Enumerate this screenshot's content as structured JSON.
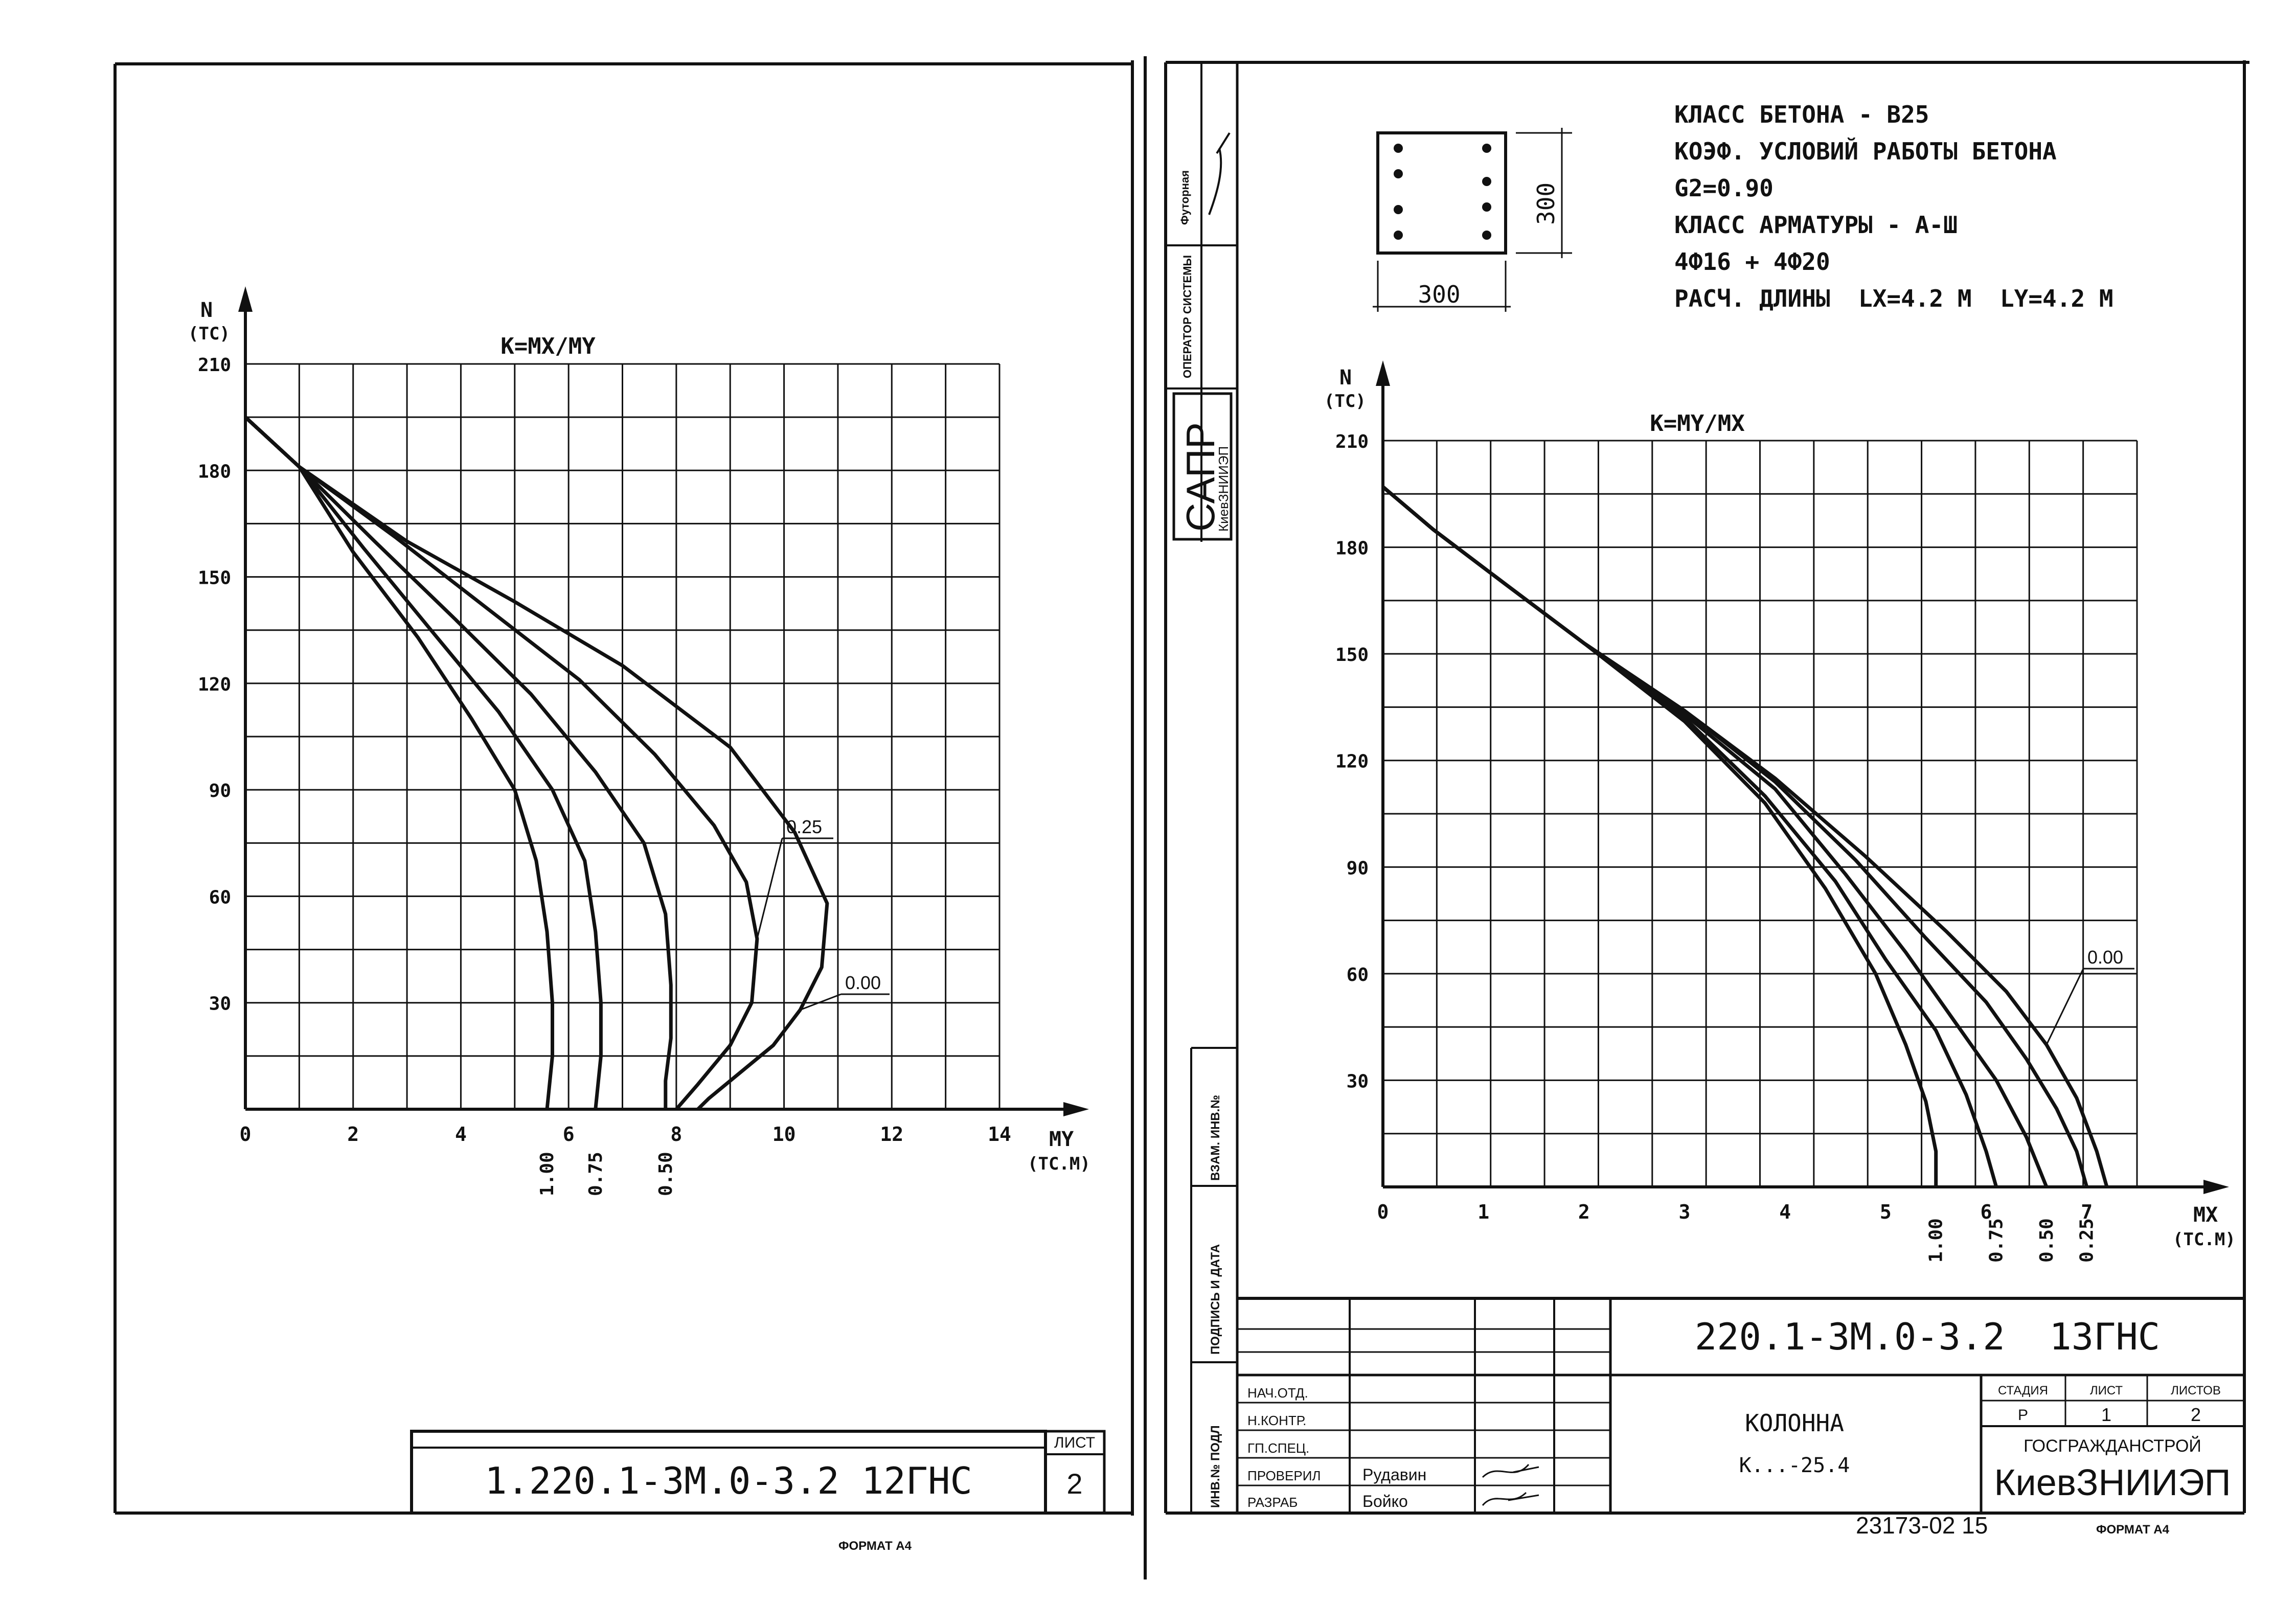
{
  "left_sheet": {
    "doc_code": "1.220.1-3M.0-3.2 12ГНС",
    "sheet_label": "ЛИСТ",
    "sheet_no": "2",
    "format_label": "ФОРМАТ А4"
  },
  "right_sheet": {
    "spec_lines": [
      "КЛАСС БЕТОНА - В25",
      "КОЭФ. УСЛОВИЙ РАБОТЫ БЕТОНА",
      "G2=0.90",
      "КЛАСС АРМАТУРЫ - А-Ш",
      "4Ф16 + 4Ф20",
      "РАСЧ. ДЛИНЫ  LX=4.2 M  LY=4.2 M"
    ],
    "section": {
      "width_label": "300",
      "height_label": "300"
    },
    "side_stamp": {
      "author_label": "Футорная",
      "operator_label": "ОПЕРАТОР СИСТЕМЫ",
      "sapr": "САПР",
      "sapr_org": "КиевЗНИИЭП",
      "col_inv_zam": "ВЗАМ. ИНВ.№",
      "col_sign_date": "ПОДПИСЬ И ДАТА",
      "col_inv_podl": "ИНВ.№ ПОДЛ"
    },
    "title_block": {
      "doc_code": "220.1-3M.0-3.2  13ГНС",
      "roles": [
        "НАЧ.ОТД.",
        "Н.КОНТР.",
        "ГП.СПЕЦ.",
        "ПРОВЕРИЛ",
        "РАЗРАБ"
      ],
      "names": [
        "",
        "",
        "",
        "Рудавин",
        "Бойко"
      ],
      "item_title": "КОЛОННА",
      "item_code": "К...-25.4",
      "stage_label": "СТАДИЯ",
      "sheet_label": "ЛИСТ",
      "sheets_label": "ЛИСТОВ",
      "stage": "Р",
      "sheet": "1",
      "sheets": "2",
      "org_line1": "ГОСГРАЖДАНСТРОЙ",
      "org_line2": "КиевЗНИИЭП"
    },
    "bottom_number": "23173-02 15",
    "format_label": "ФОРМАТ А4"
  },
  "chart_data": [
    {
      "type": "line",
      "title": "K=MX/MY",
      "ylabel": "N",
      "ylabel_unit": "(TC)",
      "xlabel": "MY",
      "xlabel_unit": "(TC.M)",
      "xlim": [
        0,
        14
      ],
      "ylim": [
        0,
        210
      ],
      "xticks": [
        0,
        2,
        4,
        6,
        8,
        10,
        12,
        14
      ],
      "yticks": [
        30,
        60,
        90,
        120,
        150,
        180,
        210
      ],
      "grid": true,
      "series": [
        {
          "name": "0.00",
          "x": [
            0,
            1,
            3,
            5,
            7,
            9,
            10.2,
            10.8,
            10.7,
            10.3,
            9.8,
            9.0,
            8.6,
            8.4
          ],
          "y": [
            195,
            181,
            160,
            143,
            125,
            102,
            78,
            58,
            40,
            28,
            18,
            8,
            3,
            0
          ]
        },
        {
          "name": "0.25",
          "x": [
            0,
            1,
            2.8,
            4.5,
            6.2,
            7.6,
            8.7,
            9.3,
            9.5,
            9.4,
            9.0,
            8.4,
            8.0
          ],
          "y": [
            195,
            181,
            161,
            141,
            121,
            100,
            80,
            64,
            48,
            30,
            18,
            7,
            0
          ]
        },
        {
          "name": "0.50",
          "x": [
            0,
            1,
            2.4,
            3.9,
            5.3,
            6.5,
            7.4,
            7.8,
            7.9,
            7.9,
            7.8,
            7.8
          ],
          "y": [
            195,
            181,
            160,
            138,
            117,
            95,
            75,
            55,
            35,
            20,
            8,
            0
          ]
        },
        {
          "name": "0.75",
          "x": [
            0,
            1,
            2.2,
            3.5,
            4.7,
            5.7,
            6.3,
            6.5,
            6.6,
            6.6,
            6.5
          ],
          "y": [
            195,
            181,
            158,
            134,
            112,
            90,
            70,
            50,
            30,
            15,
            0
          ]
        },
        {
          "name": "1.00",
          "x": [
            0,
            1,
            2.0,
            3.2,
            4.2,
            5.0,
            5.4,
            5.6,
            5.7,
            5.7,
            5.6
          ],
          "y": [
            195,
            181,
            157,
            133,
            110,
            90,
            70,
            50,
            30,
            15,
            0
          ]
        }
      ],
      "annotations": [
        "0.25",
        "0.00"
      ],
      "bottom_labels": [
        "1.00",
        "0.75",
        "0.50"
      ]
    },
    {
      "type": "line",
      "title": "K=MY/MX",
      "ylabel": "N",
      "ylabel_unit": "(TC)",
      "xlabel": "MX",
      "xlabel_unit": "(TC.M)",
      "xlim": [
        0,
        7.5
      ],
      "ylim": [
        0,
        210
      ],
      "xticks": [
        0,
        1,
        2,
        3,
        4,
        5,
        6,
        7
      ],
      "yticks": [
        30,
        60,
        90,
        120,
        150,
        180,
        210
      ],
      "grid": true,
      "series": [
        {
          "name": "0.00",
          "x": [
            0,
            0.5,
            1.2,
            2.0,
            3.0,
            3.9,
            4.8,
            5.6,
            6.2,
            6.6,
            6.9,
            7.1,
            7.2
          ],
          "y": [
            197,
            185,
            170,
            153,
            134,
            115,
            93,
            72,
            55,
            40,
            25,
            10,
            0
          ]
        },
        {
          "name": "0.25",
          "x": [
            0,
            0.5,
            1.2,
            2.0,
            3.0,
            3.9,
            4.7,
            5.4,
            6.0,
            6.4,
            6.7,
            6.9,
            7.0
          ],
          "y": [
            197,
            185,
            170,
            153,
            134,
            114,
            92,
            70,
            52,
            36,
            22,
            10,
            0
          ]
        },
        {
          "name": "0.50",
          "x": [
            0,
            0.5,
            1.2,
            2.0,
            3.0,
            3.9,
            4.6,
            5.2,
            5.7,
            6.1,
            6.4,
            6.6
          ],
          "y": [
            197,
            185,
            170,
            153,
            133,
            112,
            88,
            66,
            46,
            30,
            14,
            0
          ]
        },
        {
          "name": "0.75",
          "x": [
            0,
            0.5,
            1.2,
            2.0,
            3.0,
            3.8,
            4.5,
            5.0,
            5.5,
            5.8,
            6.0,
            6.1
          ],
          "y": [
            197,
            185,
            170,
            153,
            132,
            110,
            86,
            64,
            44,
            26,
            10,
            0
          ]
        },
        {
          "name": "1.00",
          "x": [
            0,
            0.5,
            1.2,
            2.0,
            3.0,
            3.8,
            4.4,
            4.9,
            5.2,
            5.4,
            5.5,
            5.5
          ],
          "y": [
            197,
            185,
            170,
            153,
            131,
            108,
            84,
            60,
            40,
            24,
            10,
            0
          ]
        }
      ],
      "annotations": [
        "0.00"
      ],
      "bottom_labels": [
        "1.00",
        "0.75",
        "0.50",
        "0.25"
      ]
    }
  ]
}
